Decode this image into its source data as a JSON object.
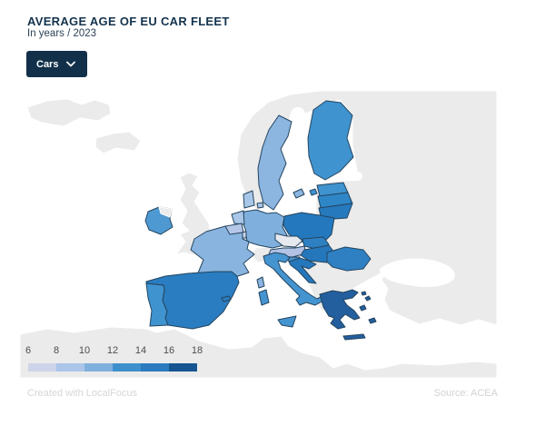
{
  "header": {
    "title": "AVERAGE AGE OF EU CAR FLEET",
    "subtitle": "In years / 2023",
    "dropdown": {
      "label": "Cars",
      "icon": "chevron-down-icon"
    }
  },
  "legend": {
    "ticks": [
      "6",
      "8",
      "10",
      "12",
      "14",
      "16",
      "18"
    ],
    "colors": [
      "#cdd4e9",
      "#abc6e9",
      "#7fb0de",
      "#3e90cd",
      "#2b7abe",
      "#165591"
    ]
  },
  "footer": {
    "credit": "Created with LocalFocus",
    "source": "Source:  ACEA"
  },
  "map": {
    "fills": {
      "sweden": "#8cb5e0",
      "finland": "#3f93cf",
      "estonia": "#3f93cf",
      "latvia": "#2e86c6",
      "lithuania": "#2679bd",
      "denmark": "#a8c6e8",
      "poland": "#2478bd",
      "germany": "#7fb0dd",
      "netherlands": "#a8c6e8",
      "belgium": "#b5c7e8",
      "luxembourg": "#cdd3e8",
      "france": "#8ab4e0",
      "ireland": "#4f99d2",
      "austria": "#b2c3e5",
      "slovakia": "#2e80c3",
      "hungary": "#2577bc",
      "slovenia": "#4a94ce",
      "croatia": "#2577bc",
      "italy": "#4494d0",
      "spain": "#2a7dc0",
      "portugal": "#3f93cf",
      "romania": "#2e80c3",
      "greece": "#235e9e",
      "no_data": "#e6e9ee",
      "non_eu": "#ebebeb"
    }
  },
  "chart_data": {
    "type": "choropleth",
    "title": "AVERAGE AGE OF EU CAR FLEET",
    "unit": "years",
    "year": "2023",
    "source": "ACEA",
    "legend": {
      "scale_ticks": [
        6,
        8,
        10,
        12,
        14,
        16,
        18
      ],
      "bucket_colors": [
        "#cdd4e9",
        "#abc6e9",
        "#7fb0de",
        "#3e90cd",
        "#2b7abe",
        "#165591"
      ],
      "position": "bottom-left"
    },
    "countries": [
      {
        "name": "Luxembourg",
        "value_range": "6-8",
        "color": "#cdd3e8"
      },
      {
        "name": "Belgium",
        "value_range": "8-10",
        "color": "#b5c7e8"
      },
      {
        "name": "Austria",
        "value_range": "8-10",
        "color": "#b2c3e5"
      },
      {
        "name": "Denmark",
        "value_range": "8-10",
        "color": "#a8c6e8"
      },
      {
        "name": "Netherlands",
        "value_range": "8-10",
        "color": "#a8c6e8"
      },
      {
        "name": "Sweden",
        "value_range": "10-12",
        "color": "#8cb5e0"
      },
      {
        "name": "France",
        "value_range": "10-12",
        "color": "#8ab4e0"
      },
      {
        "name": "Germany",
        "value_range": "10-12",
        "color": "#7fb0dd"
      },
      {
        "name": "Ireland",
        "value_range": "12-14",
        "color": "#4f99d2"
      },
      {
        "name": "Finland",
        "value_range": "12-14",
        "color": "#3f93cf"
      },
      {
        "name": "Estonia",
        "value_range": "12-14",
        "color": "#3f93cf"
      },
      {
        "name": "Italy",
        "value_range": "12-14",
        "color": "#4494d0"
      },
      {
        "name": "Portugal",
        "value_range": "12-14",
        "color": "#3f93cf"
      },
      {
        "name": "Slovenia",
        "value_range": "12-14",
        "color": "#4a94ce"
      },
      {
        "name": "Latvia",
        "value_range": "14-16",
        "color": "#2e86c6"
      },
      {
        "name": "Lithuania",
        "value_range": "14-16",
        "color": "#2679bd"
      },
      {
        "name": "Poland",
        "value_range": "14-16",
        "color": "#2478bd"
      },
      {
        "name": "Slovakia",
        "value_range": "14-16",
        "color": "#2e80c3"
      },
      {
        "name": "Hungary",
        "value_range": "14-16",
        "color": "#2577bc"
      },
      {
        "name": "Croatia",
        "value_range": "14-16",
        "color": "#2577bc"
      },
      {
        "name": "Spain",
        "value_range": "14-16",
        "color": "#2a7dc0"
      },
      {
        "name": "Romania",
        "value_range": "14-16",
        "color": "#2e80c3"
      },
      {
        "name": "Greece",
        "value_range": "16-18",
        "color": "#235e9e"
      },
      {
        "name": "Czechia",
        "value_range": "no data",
        "color": "#e6e9ee"
      },
      {
        "name": "Bulgaria",
        "value_range": "no data",
        "color": "#ebebeb"
      }
    ]
  }
}
